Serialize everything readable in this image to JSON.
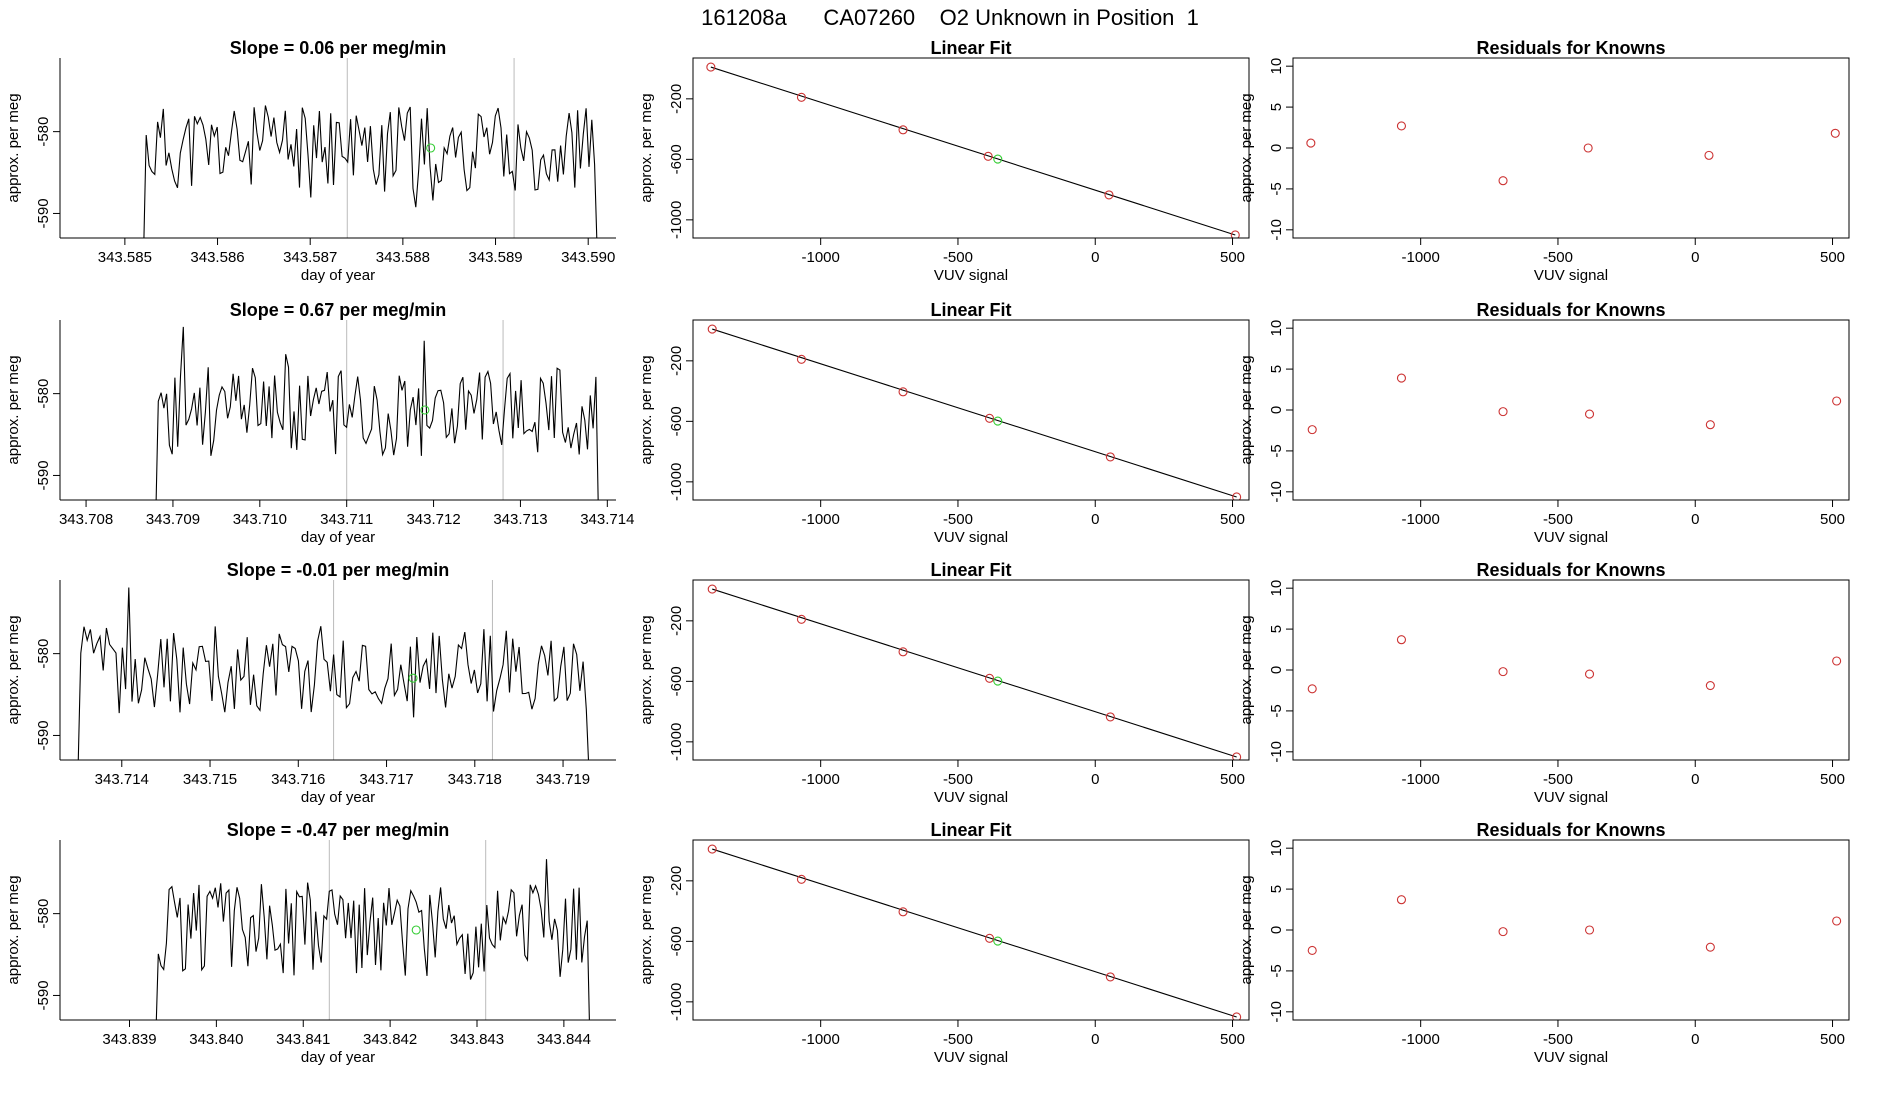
{
  "figure_title": "161208a      CA07260    O2 Unknown in Position  1",
  "colors": {
    "line": "#000000",
    "known": "#cc3333",
    "unknown": "#33cc33",
    "vline": "#bbbbbb"
  },
  "chart_data": [
    {
      "type": "line",
      "panel": "time-series-row-1",
      "title": "Slope =  0.06  per meg/min",
      "xlabel": "day of year",
      "ylabel": "approx. per meg",
      "xlim": [
        343.5843,
        343.5903
      ],
      "ylim": [
        -593,
        -571
      ],
      "xticks": [
        "343.585",
        "343.586",
        "343.587",
        "343.588",
        "343.589",
        "343.590"
      ],
      "xtick_values": [
        343.585,
        343.586,
        343.587,
        343.588,
        343.589,
        343.59
      ],
      "yticks": [
        "-580",
        "-590"
      ],
      "ytick_values": [
        -580,
        -590
      ],
      "x_start": 343.5852,
      "x_end": 343.5901,
      "vlines": [
        343.5874,
        343.5892
      ],
      "unknown_point": {
        "x": 343.5883,
        "y": -582
      },
      "seed": 11,
      "volatility": 2.4
    },
    {
      "type": "scatter",
      "panel": "linear-fit-row-1",
      "title": "Linear Fit",
      "xlabel": "VUV signal",
      "ylabel": "approx. per meg",
      "xlim": [
        -1465,
        560
      ],
      "ylim": [
        -1120,
        70
      ],
      "xticks": [
        "-1000",
        "-500",
        "0",
        "500"
      ],
      "xtick_values": [
        -1000,
        -500,
        0,
        500
      ],
      "yticks": [
        "-200",
        "-600",
        "-1000"
      ],
      "ytick_values": [
        -200,
        -600,
        -1000
      ],
      "known_points": [
        {
          "x": -1400,
          "y": 10
        },
        {
          "x": -1070,
          "y": -190
        },
        {
          "x": -700,
          "y": -405
        },
        {
          "x": -390,
          "y": -580
        },
        {
          "x": 50,
          "y": -835
        },
        {
          "x": 510,
          "y": -1100
        }
      ],
      "unknown_point": {
        "x": -355,
        "y": -598
      },
      "fit_line": [
        {
          "x": -1400,
          "y": 10
        },
        {
          "x": 510,
          "y": -1100
        }
      ]
    },
    {
      "type": "scatter",
      "panel": "residuals-row-1",
      "title": "Residuals for Knowns",
      "xlabel": "VUV signal",
      "ylabel": "approx. per meg",
      "xlim": [
        -1465,
        560
      ],
      "ylim": [
        -11,
        11
      ],
      "xticks": [
        "-1000",
        "-500",
        "0",
        "500"
      ],
      "xtick_values": [
        -1000,
        -500,
        0,
        500
      ],
      "yticks": [
        "10",
        "5",
        "0",
        "-5",
        "-10"
      ],
      "ytick_values": [
        10,
        5,
        0,
        -5,
        -10
      ],
      "known_points": [
        {
          "x": -1400,
          "y": 0.6
        },
        {
          "x": -1070,
          "y": 2.7
        },
        {
          "x": -700,
          "y": -4.0
        },
        {
          "x": -390,
          "y": 0.0
        },
        {
          "x": 50,
          "y": -0.9
        },
        {
          "x": 510,
          "y": 1.8
        }
      ]
    },
    {
      "type": "line",
      "panel": "time-series-row-2",
      "title": "Slope =  0.67  per meg/min",
      "xlabel": "day of year",
      "ylabel": "approx. per meg",
      "xlim": [
        343.7077,
        343.7141
      ],
      "ylim": [
        -593,
        -571
      ],
      "xticks": [
        "343.708",
        "343.709",
        "343.710",
        "343.711",
        "343.712",
        "343.713",
        "343.714"
      ],
      "xtick_values": [
        343.708,
        343.709,
        343.71,
        343.711,
        343.712,
        343.713,
        343.714
      ],
      "yticks": [
        "-580",
        "-590"
      ],
      "ytick_values": [
        -580,
        -590
      ],
      "x_start": 343.7088,
      "x_end": 343.7139,
      "vlines": [
        343.711,
        343.7128
      ],
      "unknown_point": {
        "x": 343.7119,
        "y": -582
      },
      "seed": 23,
      "volatility": 2.6
    },
    {
      "type": "scatter",
      "panel": "linear-fit-row-2",
      "title": "Linear Fit",
      "xlabel": "VUV signal",
      "ylabel": "approx. per meg",
      "xlim": [
        -1465,
        560
      ],
      "ylim": [
        -1120,
        70
      ],
      "xticks": [
        "-1000",
        "-500",
        "0",
        "500"
      ],
      "xtick_values": [
        -1000,
        -500,
        0,
        500
      ],
      "yticks": [
        "-200",
        "-600",
        "-1000"
      ],
      "ytick_values": [
        -200,
        -600,
        -1000
      ],
      "known_points": [
        {
          "x": -1395,
          "y": 10
        },
        {
          "x": -1070,
          "y": -190
        },
        {
          "x": -700,
          "y": -405
        },
        {
          "x": -385,
          "y": -580
        },
        {
          "x": 55,
          "y": -835
        },
        {
          "x": 515,
          "y": -1100
        }
      ],
      "unknown_point": {
        "x": -355,
        "y": -598
      },
      "fit_line": [
        {
          "x": -1395,
          "y": 10
        },
        {
          "x": 515,
          "y": -1100
        }
      ]
    },
    {
      "type": "scatter",
      "panel": "residuals-row-2",
      "title": "Residuals for Knowns",
      "xlabel": "VUV signal",
      "ylabel": "approx. per meg",
      "xlim": [
        -1465,
        560
      ],
      "ylim": [
        -11,
        11
      ],
      "xticks": [
        "-1000",
        "-500",
        "0",
        "500"
      ],
      "xtick_values": [
        -1000,
        -500,
        0,
        500
      ],
      "yticks": [
        "10",
        "5",
        "0",
        "-5",
        "-10"
      ],
      "ytick_values": [
        10,
        5,
        0,
        -5,
        -10
      ],
      "known_points": [
        {
          "x": -1395,
          "y": -2.4
        },
        {
          "x": -1070,
          "y": 3.9
        },
        {
          "x": -700,
          "y": -0.2
        },
        {
          "x": -385,
          "y": -0.5
        },
        {
          "x": 55,
          "y": -1.8
        },
        {
          "x": 515,
          "y": 1.1
        }
      ]
    },
    {
      "type": "line",
      "panel": "time-series-row-3",
      "title": "Slope =  -0.01  per meg/min",
      "xlabel": "day of year",
      "ylabel": "approx. per meg",
      "xlim": [
        343.7133,
        343.7196
      ],
      "ylim": [
        -593,
        -571
      ],
      "xticks": [
        "343.714",
        "343.715",
        "343.716",
        "343.717",
        "343.718",
        "343.719"
      ],
      "xtick_values": [
        343.714,
        343.715,
        343.716,
        343.717,
        343.718,
        343.719
      ],
      "yticks": [
        "-580",
        "-590"
      ],
      "ytick_values": [
        -580,
        -590
      ],
      "x_start": 343.7135,
      "x_end": 343.7193,
      "vlines": [
        343.7164,
        343.7182
      ],
      "unknown_point": {
        "x": 343.7173,
        "y": -583
      },
      "seed": 37,
      "volatility": 2.5
    },
    {
      "type": "scatter",
      "panel": "linear-fit-row-3",
      "title": "Linear Fit",
      "xlabel": "VUV signal",
      "ylabel": "approx. per meg",
      "xlim": [
        -1465,
        560
      ],
      "ylim": [
        -1120,
        70
      ],
      "xticks": [
        "-1000",
        "-500",
        "0",
        "500"
      ],
      "xtick_values": [
        -1000,
        -500,
        0,
        500
      ],
      "yticks": [
        "-200",
        "-600",
        "-1000"
      ],
      "ytick_values": [
        -200,
        -600,
        -1000
      ],
      "known_points": [
        {
          "x": -1395,
          "y": 10
        },
        {
          "x": -1070,
          "y": -190
        },
        {
          "x": -700,
          "y": -405
        },
        {
          "x": -385,
          "y": -580
        },
        {
          "x": 55,
          "y": -835
        },
        {
          "x": 515,
          "y": -1100
        }
      ],
      "unknown_point": {
        "x": -355,
        "y": -598
      },
      "fit_line": [
        {
          "x": -1395,
          "y": 10
        },
        {
          "x": 515,
          "y": -1100
        }
      ]
    },
    {
      "type": "scatter",
      "panel": "residuals-row-3",
      "title": "Residuals for Knowns",
      "xlabel": "VUV signal",
      "ylabel": "approx. per meg",
      "xlim": [
        -1465,
        560
      ],
      "ylim": [
        -11,
        11
      ],
      "xticks": [
        "-1000",
        "-500",
        "0",
        "500"
      ],
      "xtick_values": [
        -1000,
        -500,
        0,
        500
      ],
      "yticks": [
        "10",
        "5",
        "0",
        "-5",
        "-10"
      ],
      "ytick_values": [
        10,
        5,
        0,
        -5,
        -10
      ],
      "known_points": [
        {
          "x": -1395,
          "y": -2.3
        },
        {
          "x": -1070,
          "y": 3.7
        },
        {
          "x": -700,
          "y": -0.2
        },
        {
          "x": -385,
          "y": -0.5
        },
        {
          "x": 55,
          "y": -1.9
        },
        {
          "x": 515,
          "y": 1.1
        }
      ]
    },
    {
      "type": "line",
      "panel": "time-series-row-4",
      "title": "Slope =  -0.47  per meg/min",
      "xlabel": "day of year",
      "ylabel": "approx. per meg",
      "xlim": [
        343.8382,
        343.8446
      ],
      "ylim": [
        -593,
        -571
      ],
      "xticks": [
        "343.839",
        "343.840",
        "343.841",
        "343.842",
        "343.843",
        "343.844"
      ],
      "xtick_values": [
        343.839,
        343.84,
        343.841,
        343.842,
        343.843,
        343.844
      ],
      "yticks": [
        "-580",
        "-590"
      ],
      "ytick_values": [
        -580,
        -590
      ],
      "x_start": 343.8393,
      "x_end": 343.8443,
      "vlines": [
        343.8413,
        343.8431
      ],
      "unknown_point": {
        "x": 343.8423,
        "y": -582
      },
      "seed": 51,
      "volatility": 2.6
    },
    {
      "type": "scatter",
      "panel": "linear-fit-row-4",
      "title": "Linear Fit",
      "xlabel": "VUV signal",
      "ylabel": "approx. per meg",
      "xlim": [
        -1465,
        560
      ],
      "ylim": [
        -1120,
        70
      ],
      "xticks": [
        "-1000",
        "-500",
        "0",
        "500"
      ],
      "xtick_values": [
        -1000,
        -500,
        0,
        500
      ],
      "yticks": [
        "-200",
        "-600",
        "-1000"
      ],
      "ytick_values": [
        -200,
        -600,
        -1000
      ],
      "known_points": [
        {
          "x": -1395,
          "y": 10
        },
        {
          "x": -1070,
          "y": -190
        },
        {
          "x": -700,
          "y": -405
        },
        {
          "x": -385,
          "y": -580
        },
        {
          "x": 55,
          "y": -835
        },
        {
          "x": 515,
          "y": -1100
        }
      ],
      "unknown_point": {
        "x": -355,
        "y": -598
      },
      "fit_line": [
        {
          "x": -1395,
          "y": 10
        },
        {
          "x": 515,
          "y": -1100
        }
      ]
    },
    {
      "type": "scatter",
      "panel": "residuals-row-4",
      "title": "Residuals for Knowns",
      "xlabel": "VUV signal",
      "ylabel": "approx. per meg",
      "xlim": [
        -1465,
        560
      ],
      "ylim": [
        -11,
        11
      ],
      "xticks": [
        "-1000",
        "-500",
        "0",
        "500"
      ],
      "xtick_values": [
        -1000,
        -500,
        0,
        500
      ],
      "yticks": [
        "10",
        "5",
        "0",
        "-5",
        "-10"
      ],
      "ytick_values": [
        10,
        5,
        0,
        -5,
        -10
      ],
      "known_points": [
        {
          "x": -1395,
          "y": -2.5
        },
        {
          "x": -1070,
          "y": 3.7
        },
        {
          "x": -700,
          "y": -0.2
        },
        {
          "x": -385,
          "y": 0.0
        },
        {
          "x": 55,
          "y": -2.1
        },
        {
          "x": 515,
          "y": 1.1
        }
      ]
    }
  ]
}
